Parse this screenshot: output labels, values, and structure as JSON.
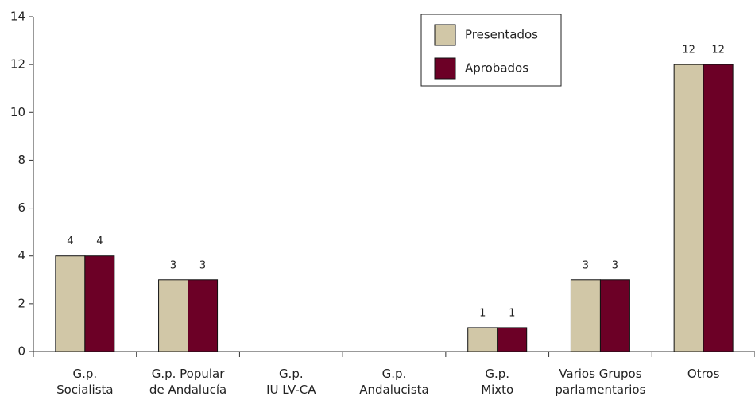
{
  "chart_data": {
    "type": "bar",
    "categories": [
      [
        "G.p.",
        "Socialista"
      ],
      [
        "G.p. Popular",
        "de Andalucía"
      ],
      [
        "G.p.",
        "IU LV-CA"
      ],
      [
        "G.p.",
        "Andalucista"
      ],
      [
        "G.p.",
        "Mixto"
      ],
      [
        "Varios Grupos",
        "parlamentarios"
      ],
      [
        "Otros"
      ]
    ],
    "series": [
      {
        "name": "Presentados",
        "color": "#d1c7a7",
        "values": [
          4,
          3,
          0,
          0,
          1,
          3,
          12
        ]
      },
      {
        "name": "Aprobados",
        "color": "#6c0026",
        "values": [
          4,
          3,
          0,
          0,
          1,
          3,
          12
        ]
      }
    ],
    "ylim": [
      0,
      14
    ],
    "yticks": [
      0,
      2,
      4,
      6,
      8,
      10,
      12,
      14
    ],
    "grid": false,
    "legend": "top-right"
  }
}
